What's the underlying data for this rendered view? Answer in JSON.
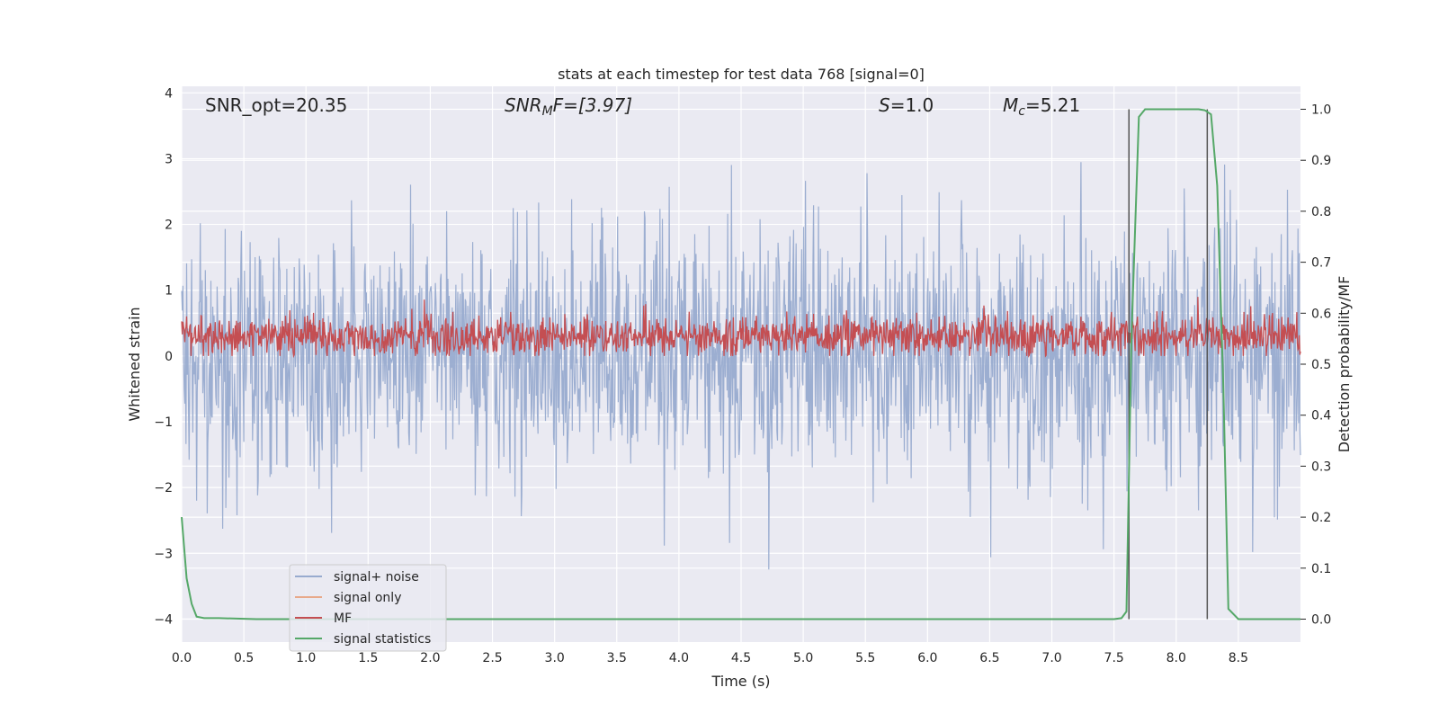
{
  "chart_data": {
    "type": "line",
    "title": "stats at each timestep for test data 768 [signal=0]",
    "xlabel": "Time (s)",
    "ylabel": "Whitened strain",
    "ylabel_right": "Detection probability/MF",
    "xlim": [
      0.0,
      9.0
    ],
    "ylim": [
      -4.35,
      4.1
    ],
    "ylim_right": [
      -0.045,
      1.045
    ],
    "x_ticks": [
      "0.0",
      "0.5",
      "1.0",
      "1.5",
      "2.0",
      "2.5",
      "3.0",
      "3.5",
      "4.0",
      "4.5",
      "5.0",
      "5.5",
      "6.0",
      "6.5",
      "7.0",
      "7.5",
      "8.0",
      "8.5"
    ],
    "y_ticks": [
      "−4",
      "−3",
      "−2",
      "−1",
      "0",
      "1",
      "2",
      "3",
      "4"
    ],
    "y_ticks_right": [
      "0.0",
      "0.1",
      "0.2",
      "0.3",
      "0.4",
      "0.5",
      "0.6",
      "0.7",
      "0.8",
      "0.9",
      "1.0"
    ],
    "grid": true,
    "legend_position": "lower-left",
    "annotations": {
      "snr_opt": "SNR_opt=20.35",
      "snr_mf_main": "SNR",
      "snr_mf_sub": "M",
      "snr_mf_rest": "F=[3.97]",
      "s_var": "S",
      "s_val": "=1.0",
      "mc_var": "M",
      "mc_sub": "c",
      "mc_val": "=5.21"
    },
    "series": [
      {
        "name": "signal+ noise",
        "color": "#98abcf",
        "description_stats": {
          "seed": 768,
          "n": 1800,
          "scale": 0.95
        }
      },
      {
        "name": "signal only",
        "color": "#e8a98a",
        "values": []
      },
      {
        "name": "MF",
        "color": "#c44e52",
        "description_stats": {
          "seed": 42,
          "n": 1800,
          "center": 0.3,
          "scale": 0.16
        }
      },
      {
        "name": "signal statistics",
        "color": "#55a868",
        "x": [
          0.0,
          0.04,
          0.08,
          0.12,
          0.18,
          0.3,
          0.6,
          1.0,
          7.5,
          7.56,
          7.6,
          7.64,
          7.7,
          7.75,
          8.0,
          8.18,
          8.23,
          8.28,
          8.33,
          8.38,
          8.42,
          8.5,
          9.0
        ],
        "y": [
          0.2,
          0.08,
          0.03,
          0.005,
          0.002,
          0.002,
          0.0,
          0.0,
          0.0,
          0.002,
          0.015,
          0.55,
          0.985,
          1.0,
          1.0,
          1.0,
          0.998,
          0.99,
          0.85,
          0.45,
          0.02,
          0.0,
          0.0
        ]
      }
    ],
    "vlines": [
      7.62,
      8.25
    ]
  }
}
